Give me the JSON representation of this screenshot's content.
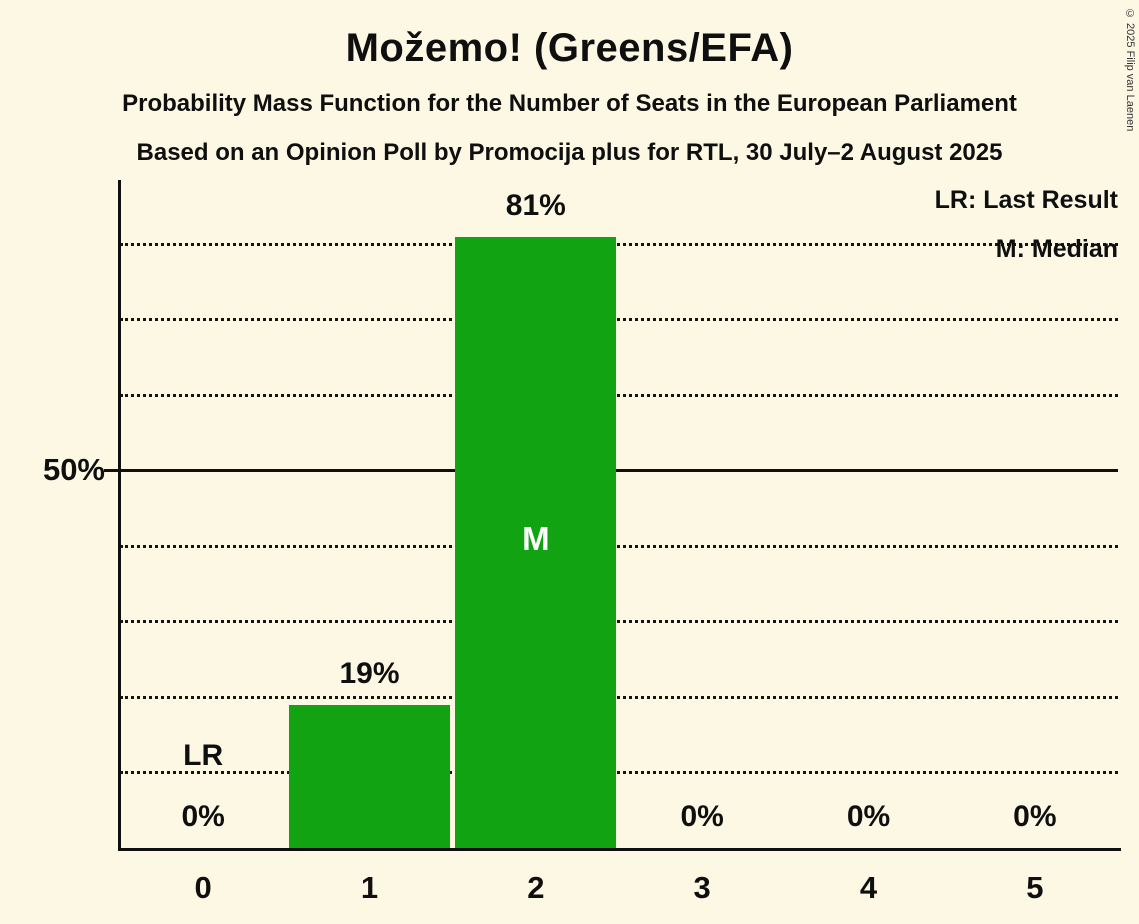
{
  "title": "Možemo! (Greens/EFA)",
  "subtitle1": "Probability Mass Function for the Number of Seats in the European Parliament",
  "subtitle2": "Based on an Opinion Poll by Promocija plus for RTL, 30 July–2 August 2025",
  "copyright": "© 2025 Filip van Laenen",
  "legend": {
    "lr": "LR: Last Result",
    "m": "M: Median"
  },
  "y_axis_label": "50%",
  "colors": {
    "background": "#FCF8E4",
    "bar": "#12A312",
    "text": "#0F0F0F"
  },
  "chart_data": {
    "type": "bar",
    "categories": [
      "0",
      "1",
      "2",
      "3",
      "4",
      "5"
    ],
    "values": [
      0,
      19,
      81,
      0,
      0,
      0
    ],
    "bar_labels": [
      "0%",
      "19%",
      "81%",
      "0%",
      "0%",
      "0%"
    ],
    "median_seat_index": 2,
    "median_marker": "M",
    "last_result_seat_index": 0,
    "last_result_marker": "LR",
    "xlabel": "",
    "ylabel": "",
    "ylim": [
      0,
      88.5
    ],
    "solid_line_percent": 50,
    "gridlines_percent": [
      10,
      20,
      30,
      40,
      60,
      70,
      80
    ],
    "grid": "dotted horizontal",
    "legend_position": "top-right"
  }
}
